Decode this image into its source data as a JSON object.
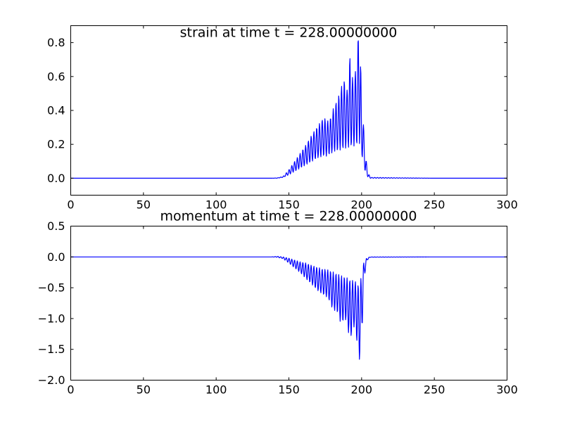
{
  "chart_data": [
    {
      "type": "line",
      "title": "strain at time t =   228.00000000",
      "xlabel": "",
      "ylabel": "",
      "xlim": [
        0,
        300
      ],
      "ylim": [
        -0.1,
        0.9
      ],
      "xticks": [
        0,
        50,
        100,
        150,
        200,
        250,
        300
      ],
      "yticks": [
        0.0,
        0.2,
        0.4,
        0.6,
        0.8
      ],
      "ytick_labels": [
        "0.0",
        "0.2",
        "0.4",
        "0.6",
        "0.8"
      ],
      "grid": false,
      "line_color": "#0000ff",
      "series": [
        {
          "x": [
            0,
            50,
            100,
            130,
            138,
            142,
            146,
            150,
            154,
            158,
            162,
            166,
            170,
            174,
            176,
            178,
            180,
            182,
            184,
            186,
            188,
            190,
            192,
            194,
            196,
            198,
            199,
            200,
            201,
            202,
            204,
            206,
            250,
            300
          ],
          "envelope_min": [
            0,
            0,
            0,
            0,
            0,
            0,
            0.005,
            0.02,
            0.04,
            0.06,
            0.08,
            0.1,
            0.12,
            0.13,
            0.13,
            0.14,
            0.15,
            0.16,
            0.16,
            0.17,
            0.17,
            0.18,
            0.18,
            0.19,
            0.19,
            0.2,
            0.2,
            0.1,
            0.15,
            0.05,
            0.01,
            0.0,
            0,
            0
          ],
          "envelope_max": [
            0,
            0,
            0,
            0,
            0,
            0.002,
            0.01,
            0.05,
            0.1,
            0.15,
            0.2,
            0.26,
            0.31,
            0.36,
            0.34,
            0.34,
            0.4,
            0.44,
            0.48,
            0.54,
            0.58,
            0.52,
            0.72,
            0.58,
            0.64,
            0.88,
            0.88,
            0.36,
            0.37,
            0.2,
            0.04,
            0.005,
            0,
            0
          ]
        }
      ]
    },
    {
      "type": "line",
      "title": "momentum at time t =   228.00000000",
      "xlabel": "",
      "ylabel": "",
      "xlim": [
        0,
        300
      ],
      "ylim": [
        -2.0,
        0.5
      ],
      "xticks": [
        0,
        50,
        100,
        150,
        200,
        250,
        300
      ],
      "yticks": [
        -2.0,
        -1.5,
        -1.0,
        -0.5,
        0.0,
        0.5
      ],
      "ytick_labels": [
        "−2.0",
        "−1.5",
        "−1.0",
        "−0.5",
        "0.0",
        "0.5"
      ],
      "grid": false,
      "line_color": "#0000ff",
      "series": [
        {
          "x": [
            0,
            50,
            100,
            130,
            138,
            142,
            146,
            150,
            154,
            158,
            162,
            166,
            170,
            174,
            176,
            178,
            180,
            182,
            184,
            186,
            188,
            190,
            192,
            194,
            196,
            198,
            199,
            200,
            201,
            202,
            204,
            206,
            250,
            300
          ],
          "envelope_min": [
            0,
            0,
            0,
            0,
            0,
            -0.005,
            -0.03,
            -0.1,
            -0.18,
            -0.26,
            -0.36,
            -0.45,
            -0.55,
            -0.62,
            -0.65,
            -0.72,
            -0.85,
            -0.88,
            -0.92,
            -1.12,
            -1.0,
            -1.05,
            -1.42,
            -1.1,
            -1.2,
            -1.68,
            -1.66,
            -1.25,
            -0.9,
            -0.3,
            -0.05,
            -0.005,
            0,
            0
          ],
          "envelope_max": [
            0,
            0,
            0,
            0,
            0,
            0.01,
            0.0,
            -0.02,
            -0.05,
            -0.08,
            -0.1,
            -0.14,
            -0.17,
            -0.2,
            -0.2,
            -0.22,
            -0.24,
            -0.26,
            -0.28,
            -0.3,
            -0.32,
            -0.34,
            -0.36,
            -0.38,
            -0.4,
            -0.45,
            -0.4,
            -0.3,
            -0.12,
            -0.05,
            -0.01,
            0.0,
            0,
            0
          ]
        }
      ]
    }
  ]
}
